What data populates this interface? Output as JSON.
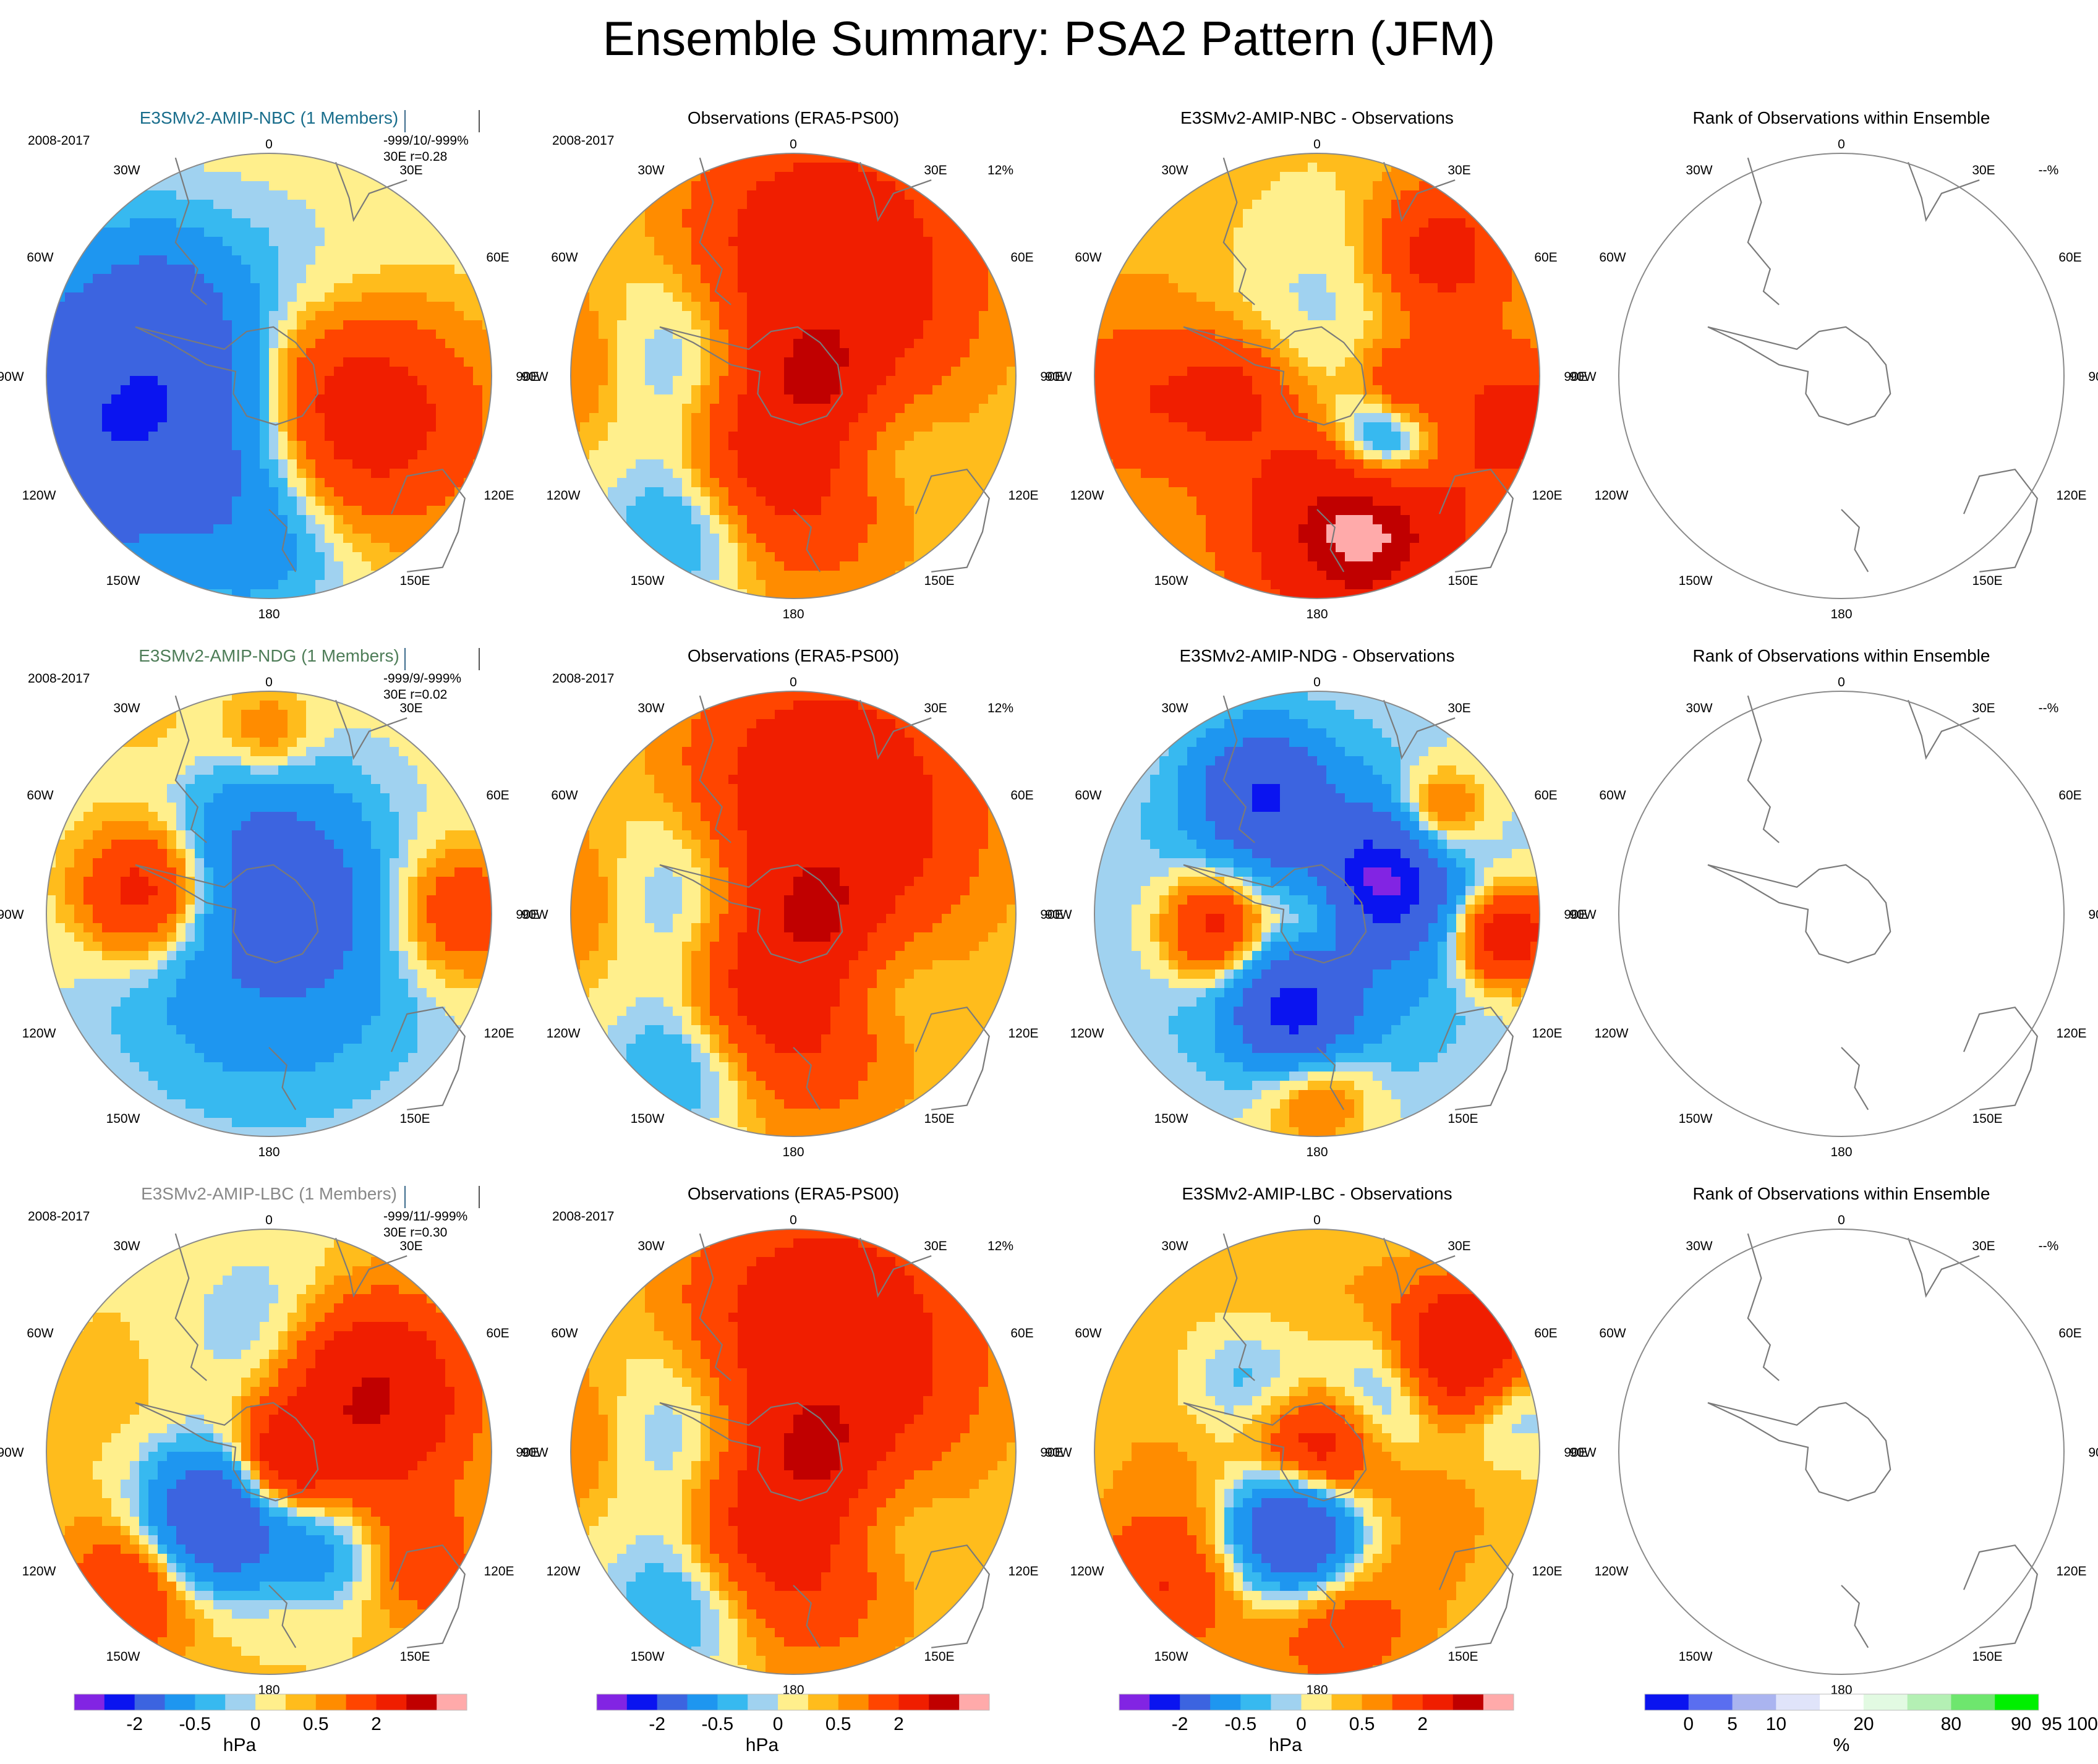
{
  "title": "Ensemble Summary: PSA2 Pattern (JFM)",
  "colors": {
    "hpa_scale": [
      "#8224e3",
      "#0a14f0",
      "#3c64e0",
      "#1e96f0",
      "#37b9f0",
      "#a0d2f0",
      "#ffef8c",
      "#ffbc1c",
      "#ff8c00",
      "#ff4500",
      "#f01e00",
      "#c00000",
      "#ffaaaa"
    ],
    "rank_scale": [
      "#0a14f0",
      "#5a6ef0",
      "#aab4f0",
      "#e0e4fa",
      "#ffffff",
      "#e2fae2",
      "#b4f0b4",
      "#6ee66e",
      "#00f000"
    ],
    "nbc_title": "#1a6e8c",
    "ndg_title": "#4e7d58",
    "lbc_title": "#888888",
    "plain_title": "#000000"
  },
  "map_labels": {
    "lon_top": "0",
    "lon_bottom": "180",
    "lon_30w": "30W",
    "lon_30e": "30E",
    "lon_60w": "60W",
    "lon_60e": "60E",
    "lon_90w": "90W",
    "lon_90e": "90E",
    "lon_120w": "120W",
    "lon_120e": "120E",
    "lon_150w": "150W",
    "lon_150e": "150E"
  },
  "rows": [
    {
      "model": {
        "title": "E3SMv2-AMIP-NBC (1 Members)",
        "period": "2008-2017",
        "stats_line1": "-999/10/-999%",
        "stats_line2": "30E r=0.28",
        "field": [
          [
            0.42,
            0.2,
            1,
            0.5
          ],
          [
            0.4,
            0.15,
            0.7,
            0.45
          ],
          [
            0.22,
            0.08,
            0.2,
            0.3
          ],
          [
            0.1,
            -0.15,
            0.2,
            0.25
          ],
          [
            -0.5,
            0.22,
            -1.2,
            0.5
          ],
          [
            -1.3,
            0.3,
            -1.5,
            0.8
          ],
          [
            -0.5,
            -0.35,
            -0.7,
            0.35
          ],
          [
            2.6,
            0.52,
            1.6,
            1.0
          ],
          [
            0.0,
            0.75,
            -0.6,
            0.35
          ],
          [
            0.0,
            0.0,
            -0.6,
            0.6
          ]
        ]
      },
      "obs": {
        "title": "Observations (ERA5-PS00)",
        "period": "2008-2017",
        "percent": "12%",
        "field": [
          [
            0.15,
            -0.5,
            1.6,
            0.6
          ],
          [
            -0.55,
            -0.05,
            -1.2,
            0.45
          ],
          [
            -0.45,
            0.65,
            -0.9,
            0.35
          ],
          [
            0.0,
            0.35,
            1.4,
            0.5
          ],
          [
            0.1,
            0.0,
            0.9,
            0.2
          ],
          [
            0.35,
            0.3,
            -0.8,
            0.35
          ],
          [
            -0.3,
            0.4,
            0.3,
            0.3
          ],
          [
            -0.9,
            -0.05,
            0.8,
            0.4
          ],
          [
            0.0,
            0.0,
            0.3,
            1.0
          ]
        ]
      },
      "diff": {
        "title": "E3SMv2-AMIP-NBC - Observations",
        "field": [
          [
            0.05,
            -0.25,
            -0.9,
            0.6
          ],
          [
            0.3,
            0.3,
            -1.8,
            0.25
          ],
          [
            0.55,
            -0.55,
            1.2,
            0.3
          ],
          [
            0.2,
            0.7,
            2.4,
            0.42
          ],
          [
            -0.4,
            0.08,
            0.9,
            0.25
          ],
          [
            0.38,
            0.05,
            1.0,
            0.2
          ],
          [
            0.0,
            0.0,
            0.8,
            1.0
          ],
          [
            0.9,
            0.2,
            1.0,
            0.3
          ],
          [
            -0.85,
            0.1,
            0.6,
            0.3
          ]
        ]
      },
      "rank": {
        "title": "Rank of Observations within Ensemble",
        "percent": "--%"
      }
    },
    {
      "model": {
        "title": "E3SMv2-AMIP-NDG (1 Members)",
        "period": "2008-2017",
        "stats_line1": "-999/9/-999%",
        "stats_line2": "30E  r=0.02",
        "field": [
          [
            0.0,
            0.15,
            -1.1,
            0.7
          ],
          [
            -0.55,
            -0.1,
            1.6,
            0.3
          ],
          [
            0.85,
            0.0,
            1.0,
            0.3
          ],
          [
            0.0,
            -0.3,
            -0.7,
            0.4
          ],
          [
            0.15,
            0.0,
            -0.6,
            0.25
          ],
          [
            0.0,
            0.0,
            0.1,
            1.0
          ],
          [
            0.0,
            -0.8,
            0.6,
            0.2
          ],
          [
            -0.5,
            -0.8,
            0.2,
            0.3
          ]
        ]
      },
      "obs": {
        "title": "Observations (ERA5-PS00)",
        "period": "2008-2017",
        "percent": "12%",
        "field": [
          [
            0.15,
            -0.5,
            1.6,
            0.6
          ],
          [
            -0.55,
            -0.05,
            -1.2,
            0.45
          ],
          [
            -0.45,
            0.65,
            -0.9,
            0.35
          ],
          [
            0.0,
            0.35,
            1.4,
            0.5
          ],
          [
            0.1,
            0.0,
            0.9,
            0.2
          ],
          [
            0.35,
            0.3,
            -0.8,
            0.35
          ],
          [
            -0.3,
            0.4,
            0.3,
            0.3
          ],
          [
            -0.9,
            -0.05,
            0.8,
            0.4
          ],
          [
            0.0,
            0.0,
            0.3,
            1.0
          ]
        ]
      },
      "diff": {
        "title": "E3SMv2-AMIP-NDG - Observations",
        "field": [
          [
            0.3,
            -0.15,
            -2.0,
            0.28
          ],
          [
            -0.25,
            -0.55,
            -1.6,
            0.28
          ],
          [
            -0.1,
            0.45,
            -1.8,
            0.25
          ],
          [
            -0.45,
            0.05,
            1.7,
            0.25
          ],
          [
            0.85,
            0.1,
            1.7,
            0.22
          ],
          [
            0.0,
            0.8,
            0.8,
            0.25
          ],
          [
            0.55,
            -0.45,
            1.0,
            0.2
          ],
          [
            0.0,
            0.0,
            -0.9,
            0.75
          ],
          [
            0.0,
            0.0,
            0.9,
            0.2
          ]
        ]
      },
      "rank": {
        "title": "Rank of Observations within Ensemble",
        "percent": "--%"
      }
    },
    {
      "model": {
        "title": "E3SMv2-AMIP-LBC (1 Members)",
        "period": "2008-2017",
        "stats_line1": "-999/11/-999%",
        "stats_line2": "30E r=0.30",
        "field": [
          [
            0.45,
            -0.25,
            2.0,
            0.4
          ],
          [
            -0.25,
            0.3,
            -2.3,
            0.32
          ],
          [
            0.05,
            0.05,
            1.3,
            0.22
          ],
          [
            -0.6,
            0.6,
            1.0,
            0.3
          ],
          [
            0.0,
            -0.5,
            -0.6,
            0.4
          ],
          [
            0.25,
            0.45,
            -0.8,
            0.25
          ],
          [
            0.7,
            0.5,
            0.7,
            0.25
          ],
          [
            0.0,
            0.0,
            0.3,
            1.0
          ]
        ]
      },
      "obs": {
        "title": "Observations (ERA5-PS00)",
        "period": "2008-2017",
        "percent": "12%",
        "field": [
          [
            0.15,
            -0.5,
            1.6,
            0.6
          ],
          [
            -0.55,
            -0.05,
            -1.2,
            0.45
          ],
          [
            -0.45,
            0.65,
            -0.9,
            0.35
          ],
          [
            0.0,
            0.35,
            1.4,
            0.5
          ],
          [
            0.1,
            0.0,
            0.9,
            0.2
          ],
          [
            0.35,
            0.3,
            -0.8,
            0.35
          ],
          [
            -0.3,
            0.4,
            0.3,
            0.3
          ],
          [
            -0.9,
            -0.05,
            0.8,
            0.4
          ],
          [
            0.0,
            0.0,
            0.3,
            1.0
          ]
        ]
      },
      "diff": {
        "title": "E3SMv2-AMIP-LBC - Observations",
        "field": [
          [
            -0.1,
            0.35,
            -2.6,
            0.28
          ],
          [
            0.65,
            -0.45,
            1.9,
            0.28
          ],
          [
            0.0,
            0.0,
            1.3,
            0.25
          ],
          [
            0.3,
            -0.25,
            -0.9,
            0.3
          ],
          [
            -0.3,
            -0.3,
            -0.7,
            0.3
          ],
          [
            0.0,
            0.0,
            0.5,
            1.0
          ],
          [
            0.1,
            0.8,
            0.6,
            0.3
          ],
          [
            -0.7,
            0.6,
            0.8,
            0.3
          ],
          [
            0.85,
            -0.2,
            -0.6,
            0.25
          ]
        ]
      },
      "rank": {
        "title": "Rank of Observations within Ensemble",
        "percent": "--%"
      }
    }
  ],
  "colorbars": [
    {
      "ticks": [
        "-2",
        "-0.5",
        "0",
        "0.5",
        "2"
      ],
      "unit": "hPa"
    },
    {
      "ticks": [
        "-2",
        "-0.5",
        "0",
        "0.5",
        "2"
      ],
      "unit": "hPa"
    },
    {
      "ticks": [
        "-2",
        "-0.5",
        "0",
        "0.5",
        "2"
      ],
      "unit": "hPa"
    },
    {
      "ticks": [
        "0",
        "5",
        "10",
        "20",
        "80",
        "90",
        "95",
        "100"
      ],
      "unit": "%"
    }
  ]
}
